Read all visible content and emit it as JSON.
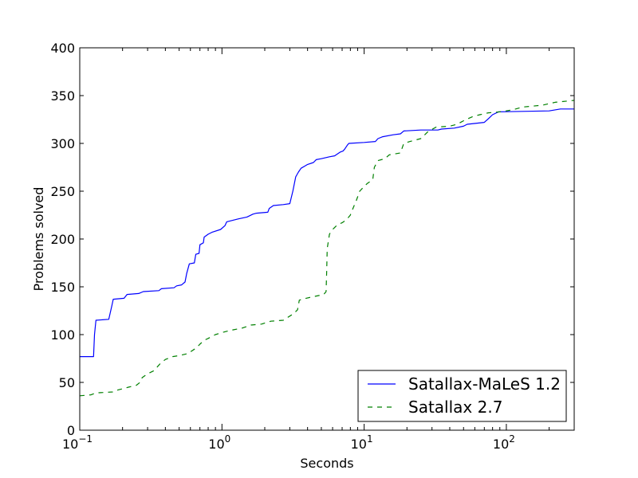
{
  "chart_data": {
    "type": "line",
    "xlabel": "Seconds",
    "ylabel": "Problems solved",
    "xscale": "log",
    "xlim": [
      0.1,
      300
    ],
    "ylim": [
      0,
      400
    ],
    "grid": false,
    "legend_position": "lower-right",
    "x_ticks": [
      {
        "value": 0.1,
        "base": "10",
        "exp": "−1"
      },
      {
        "value": 1,
        "base": "10",
        "exp": "0"
      },
      {
        "value": 10,
        "base": "10",
        "exp": "1"
      },
      {
        "value": 100,
        "base": "10",
        "exp": "2"
      }
    ],
    "y_ticks": [
      "0",
      "50",
      "100",
      "150",
      "200",
      "250",
      "300",
      "350",
      "400"
    ],
    "series": [
      {
        "name": "Satallax-MaLeS 1.2",
        "color": "#0000ff",
        "style": "solid",
        "points": [
          [
            0.1,
            77
          ],
          [
            0.125,
            77
          ],
          [
            0.127,
            100
          ],
          [
            0.13,
            115
          ],
          [
            0.16,
            116
          ],
          [
            0.168,
            130
          ],
          [
            0.172,
            137
          ],
          [
            0.205,
            138
          ],
          [
            0.215,
            142
          ],
          [
            0.26,
            143
          ],
          [
            0.28,
            145
          ],
          [
            0.36,
            146
          ],
          [
            0.375,
            148
          ],
          [
            0.46,
            149
          ],
          [
            0.48,
            151
          ],
          [
            0.52,
            152
          ],
          [
            0.55,
            155
          ],
          [
            0.565,
            164
          ],
          [
            0.59,
            174
          ],
          [
            0.64,
            175
          ],
          [
            0.655,
            184
          ],
          [
            0.69,
            185
          ],
          [
            0.7,
            194
          ],
          [
            0.74,
            196
          ],
          [
            0.75,
            202
          ],
          [
            0.8,
            205
          ],
          [
            0.85,
            207
          ],
          [
            0.98,
            210
          ],
          [
            1.05,
            214
          ],
          [
            1.08,
            218
          ],
          [
            1.3,
            221
          ],
          [
            1.5,
            223
          ],
          [
            1.65,
            226
          ],
          [
            1.75,
            227
          ],
          [
            2.1,
            228
          ],
          [
            2.15,
            232
          ],
          [
            2.3,
            235
          ],
          [
            2.7,
            236
          ],
          [
            3.0,
            237
          ],
          [
            3.15,
            250
          ],
          [
            3.3,
            265
          ],
          [
            3.45,
            270
          ],
          [
            3.6,
            274
          ],
          [
            4.0,
            278
          ],
          [
            4.4,
            280
          ],
          [
            4.6,
            283
          ],
          [
            5.0,
            284
          ],
          [
            5.7,
            286
          ],
          [
            6.2,
            287
          ],
          [
            6.8,
            291
          ],
          [
            7.1,
            292
          ],
          [
            7.3,
            294
          ],
          [
            7.6,
            298
          ],
          [
            7.8,
            300
          ],
          [
            10,
            301
          ],
          [
            12,
            302
          ],
          [
            12.5,
            305
          ],
          [
            13.5,
            307
          ],
          [
            16,
            309
          ],
          [
            18,
            310
          ],
          [
            19,
            313
          ],
          [
            25,
            314
          ],
          [
            33,
            314
          ],
          [
            35,
            315
          ],
          [
            43,
            316
          ],
          [
            50,
            318
          ],
          [
            53,
            320
          ],
          [
            70,
            322
          ],
          [
            75,
            326
          ],
          [
            80,
            330
          ],
          [
            88,
            333
          ],
          [
            200,
            334
          ],
          [
            240,
            336
          ],
          [
            300,
            336
          ]
        ]
      },
      {
        "name": "Satallax 2.7",
        "color": "#008000",
        "style": "dashed",
        "points": [
          [
            0.1,
            36
          ],
          [
            0.12,
            37
          ],
          [
            0.13,
            39
          ],
          [
            0.17,
            40
          ],
          [
            0.185,
            42
          ],
          [
            0.22,
            45
          ],
          [
            0.25,
            47
          ],
          [
            0.265,
            50
          ],
          [
            0.275,
            55
          ],
          [
            0.3,
            59
          ],
          [
            0.33,
            62
          ],
          [
            0.35,
            66
          ],
          [
            0.37,
            70
          ],
          [
            0.4,
            74
          ],
          [
            0.45,
            77
          ],
          [
            0.5,
            78
          ],
          [
            0.57,
            80
          ],
          [
            0.6,
            82
          ],
          [
            0.66,
            86
          ],
          [
            0.7,
            90
          ],
          [
            0.75,
            94
          ],
          [
            0.8,
            96
          ],
          [
            0.9,
            100
          ],
          [
            1.05,
            103
          ],
          [
            1.2,
            105
          ],
          [
            1.4,
            107
          ],
          [
            1.6,
            110
          ],
          [
            1.9,
            111
          ],
          [
            2.2,
            114
          ],
          [
            2.7,
            115
          ],
          [
            2.9,
            118
          ],
          [
            3.2,
            122
          ],
          [
            3.4,
            126
          ],
          [
            3.5,
            136
          ],
          [
            3.9,
            138
          ],
          [
            4.5,
            140
          ],
          [
            5.2,
            142
          ],
          [
            5.4,
            145
          ],
          [
            5.45,
            165
          ],
          [
            5.5,
            190
          ],
          [
            5.7,
            205
          ],
          [
            6.0,
            210
          ],
          [
            6.5,
            215
          ],
          [
            7.0,
            217
          ],
          [
            7.5,
            220
          ],
          [
            8.0,
            225
          ],
          [
            8.4,
            233
          ],
          [
            8.8,
            240
          ],
          [
            9.3,
            250
          ],
          [
            10,
            255
          ],
          [
            10.5,
            258
          ],
          [
            11.5,
            262
          ],
          [
            11.8,
            275
          ],
          [
            12.5,
            282
          ],
          [
            14,
            284
          ],
          [
            15,
            288
          ],
          [
            18,
            290
          ],
          [
            19,
            300
          ],
          [
            21,
            302
          ],
          [
            25,
            305
          ],
          [
            28,
            312
          ],
          [
            32,
            317
          ],
          [
            40,
            318
          ],
          [
            45,
            320
          ],
          [
            52,
            325
          ],
          [
            58,
            328
          ],
          [
            65,
            330
          ],
          [
            75,
            332
          ],
          [
            90,
            333
          ],
          [
            110,
            335
          ],
          [
            130,
            338
          ],
          [
            180,
            340
          ],
          [
            220,
            343
          ],
          [
            300,
            345
          ]
        ]
      }
    ]
  }
}
